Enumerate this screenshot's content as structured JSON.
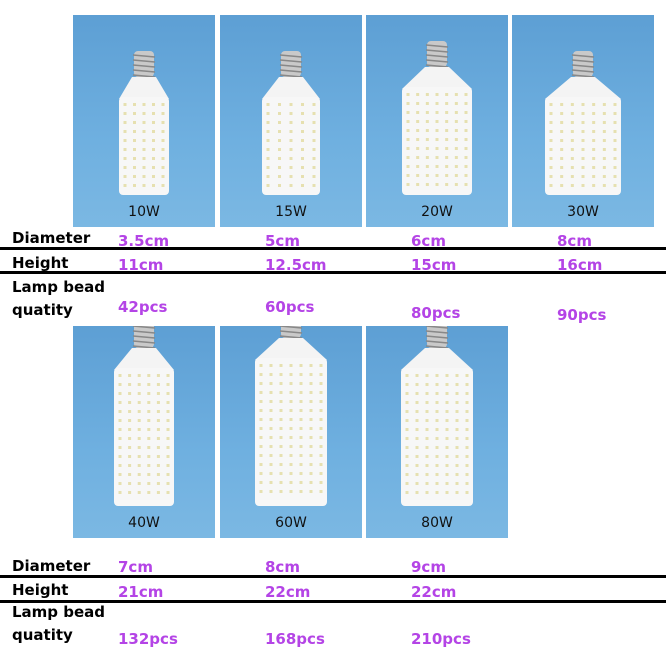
{
  "groups": [
    {
      "labels": {
        "diameter": "Diameter",
        "height": "Height",
        "beads": "Lamp bead quatity"
      },
      "products": [
        {
          "power": "10W",
          "diameter": "3.5cm",
          "height": "11cm",
          "beads": "42pcs"
        },
        {
          "power": "15W",
          "diameter": "5cm",
          "height": "12.5cm",
          "beads": "60pcs"
        },
        {
          "power": "20W",
          "diameter": "6cm",
          "height": "15cm",
          "beads": "80pcs"
        },
        {
          "power": "30W",
          "diameter": "8cm",
          "height": "16cm",
          "beads": "90pcs"
        }
      ]
    },
    {
      "labels": {
        "diameter": "Diameter",
        "height": "Height",
        "beads": "Lamp bead quatity"
      },
      "products": [
        {
          "power": "40W",
          "diameter": "7cm",
          "height": "21cm",
          "beads": "132pcs"
        },
        {
          "power": "60W",
          "diameter": "8cm",
          "height": "22cm",
          "beads": "168pcs"
        },
        {
          "power": "80W",
          "diameter": "9cm",
          "height": "22cm",
          "beads": "210pcs"
        }
      ]
    }
  ]
}
